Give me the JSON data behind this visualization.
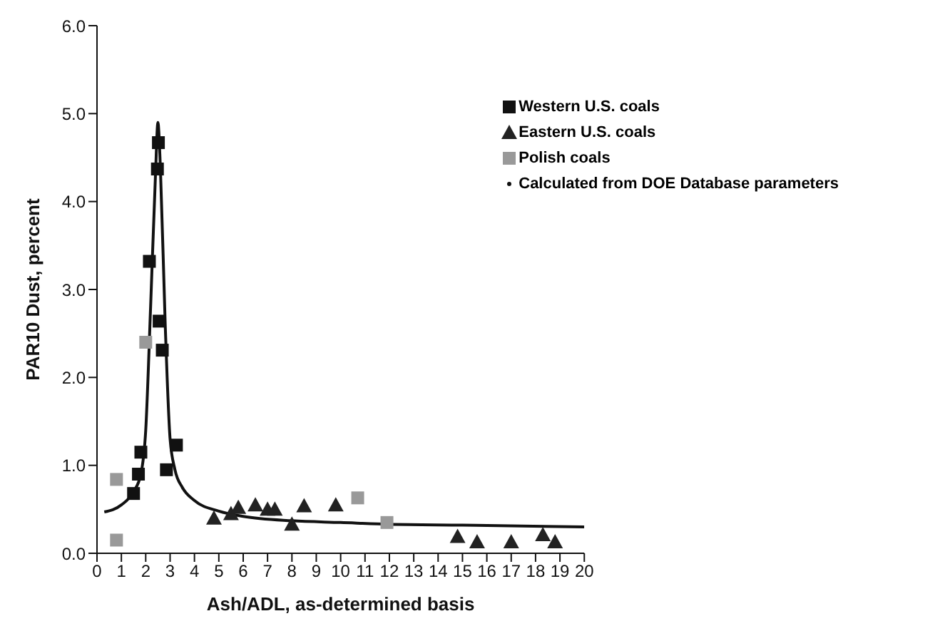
{
  "chart_data": {
    "type": "scatter",
    "xlabel": "Ash/ADL, as-determined basis",
    "ylabel": "PAR10 Dust, percent",
    "xlim": [
      0,
      20
    ],
    "ylim": [
      0,
      6
    ],
    "xticks": [
      0,
      1,
      2,
      3,
      4,
      5,
      6,
      7,
      8,
      9,
      10,
      11,
      12,
      13,
      14,
      15,
      16,
      17,
      18,
      19,
      20
    ],
    "yticks": [
      {
        "value": 0,
        "label": "0.0"
      },
      {
        "value": 1,
        "label": "1.0"
      },
      {
        "value": 2,
        "label": "2.0"
      },
      {
        "value": 3,
        "label": "3.0"
      },
      {
        "value": 4,
        "label": "4.0"
      },
      {
        "value": 5,
        "label": "5.0"
      },
      {
        "value": 6,
        "label": "6.0"
      }
    ],
    "grid": false,
    "legend": "top right",
    "series": [
      {
        "name": "Western U.S. coals",
        "color": "#111111",
        "marker": "square",
        "x": [
          1.5,
          1.7,
          1.8,
          2.15,
          2.48,
          2.52,
          2.55,
          2.68,
          2.85,
          3.26
        ],
        "values": [
          0.68,
          0.9,
          1.15,
          3.32,
          4.37,
          4.67,
          2.64,
          2.31,
          0.95,
          1.23
        ]
      },
      {
        "name": "Eastern U.S. coals",
        "color": "#222222",
        "marker": "triangle",
        "x": [
          4.8,
          5.5,
          5.8,
          6.5,
          7.0,
          7.3,
          8.0,
          8.5,
          9.8,
          14.8,
          15.6,
          17.0,
          18.3,
          18.8
        ],
        "values": [
          0.4,
          0.45,
          0.52,
          0.55,
          0.5,
          0.5,
          0.33,
          0.54,
          0.55,
          0.19,
          0.13,
          0.13,
          0.21,
          0.13
        ]
      },
      {
        "name": "Polish coals",
        "color": "#999999",
        "marker": "square",
        "x": [
          0.8,
          0.8,
          2.0,
          10.7,
          11.9
        ],
        "values": [
          0.84,
          0.15,
          2.4,
          0.63,
          0.35
        ]
      },
      {
        "name": "Calculated from DOE Database parameters",
        "color": "#111111",
        "type": "line",
        "marker": "none",
        "line_style": "solid",
        "x": [
          0.3,
          1,
          1.5,
          1.8,
          2.0,
          2.2,
          2.4,
          2.5,
          2.6,
          2.8,
          3.0,
          3.2,
          3.5,
          4,
          5,
          6,
          8,
          10,
          12,
          15,
          20
        ],
        "values": [
          0.47,
          0.55,
          0.7,
          0.9,
          1.4,
          2.8,
          4.3,
          4.9,
          4.4,
          2.6,
          1.3,
          0.95,
          0.75,
          0.6,
          0.48,
          0.42,
          0.37,
          0.35,
          0.33,
          0.32,
          0.3
        ]
      }
    ]
  }
}
